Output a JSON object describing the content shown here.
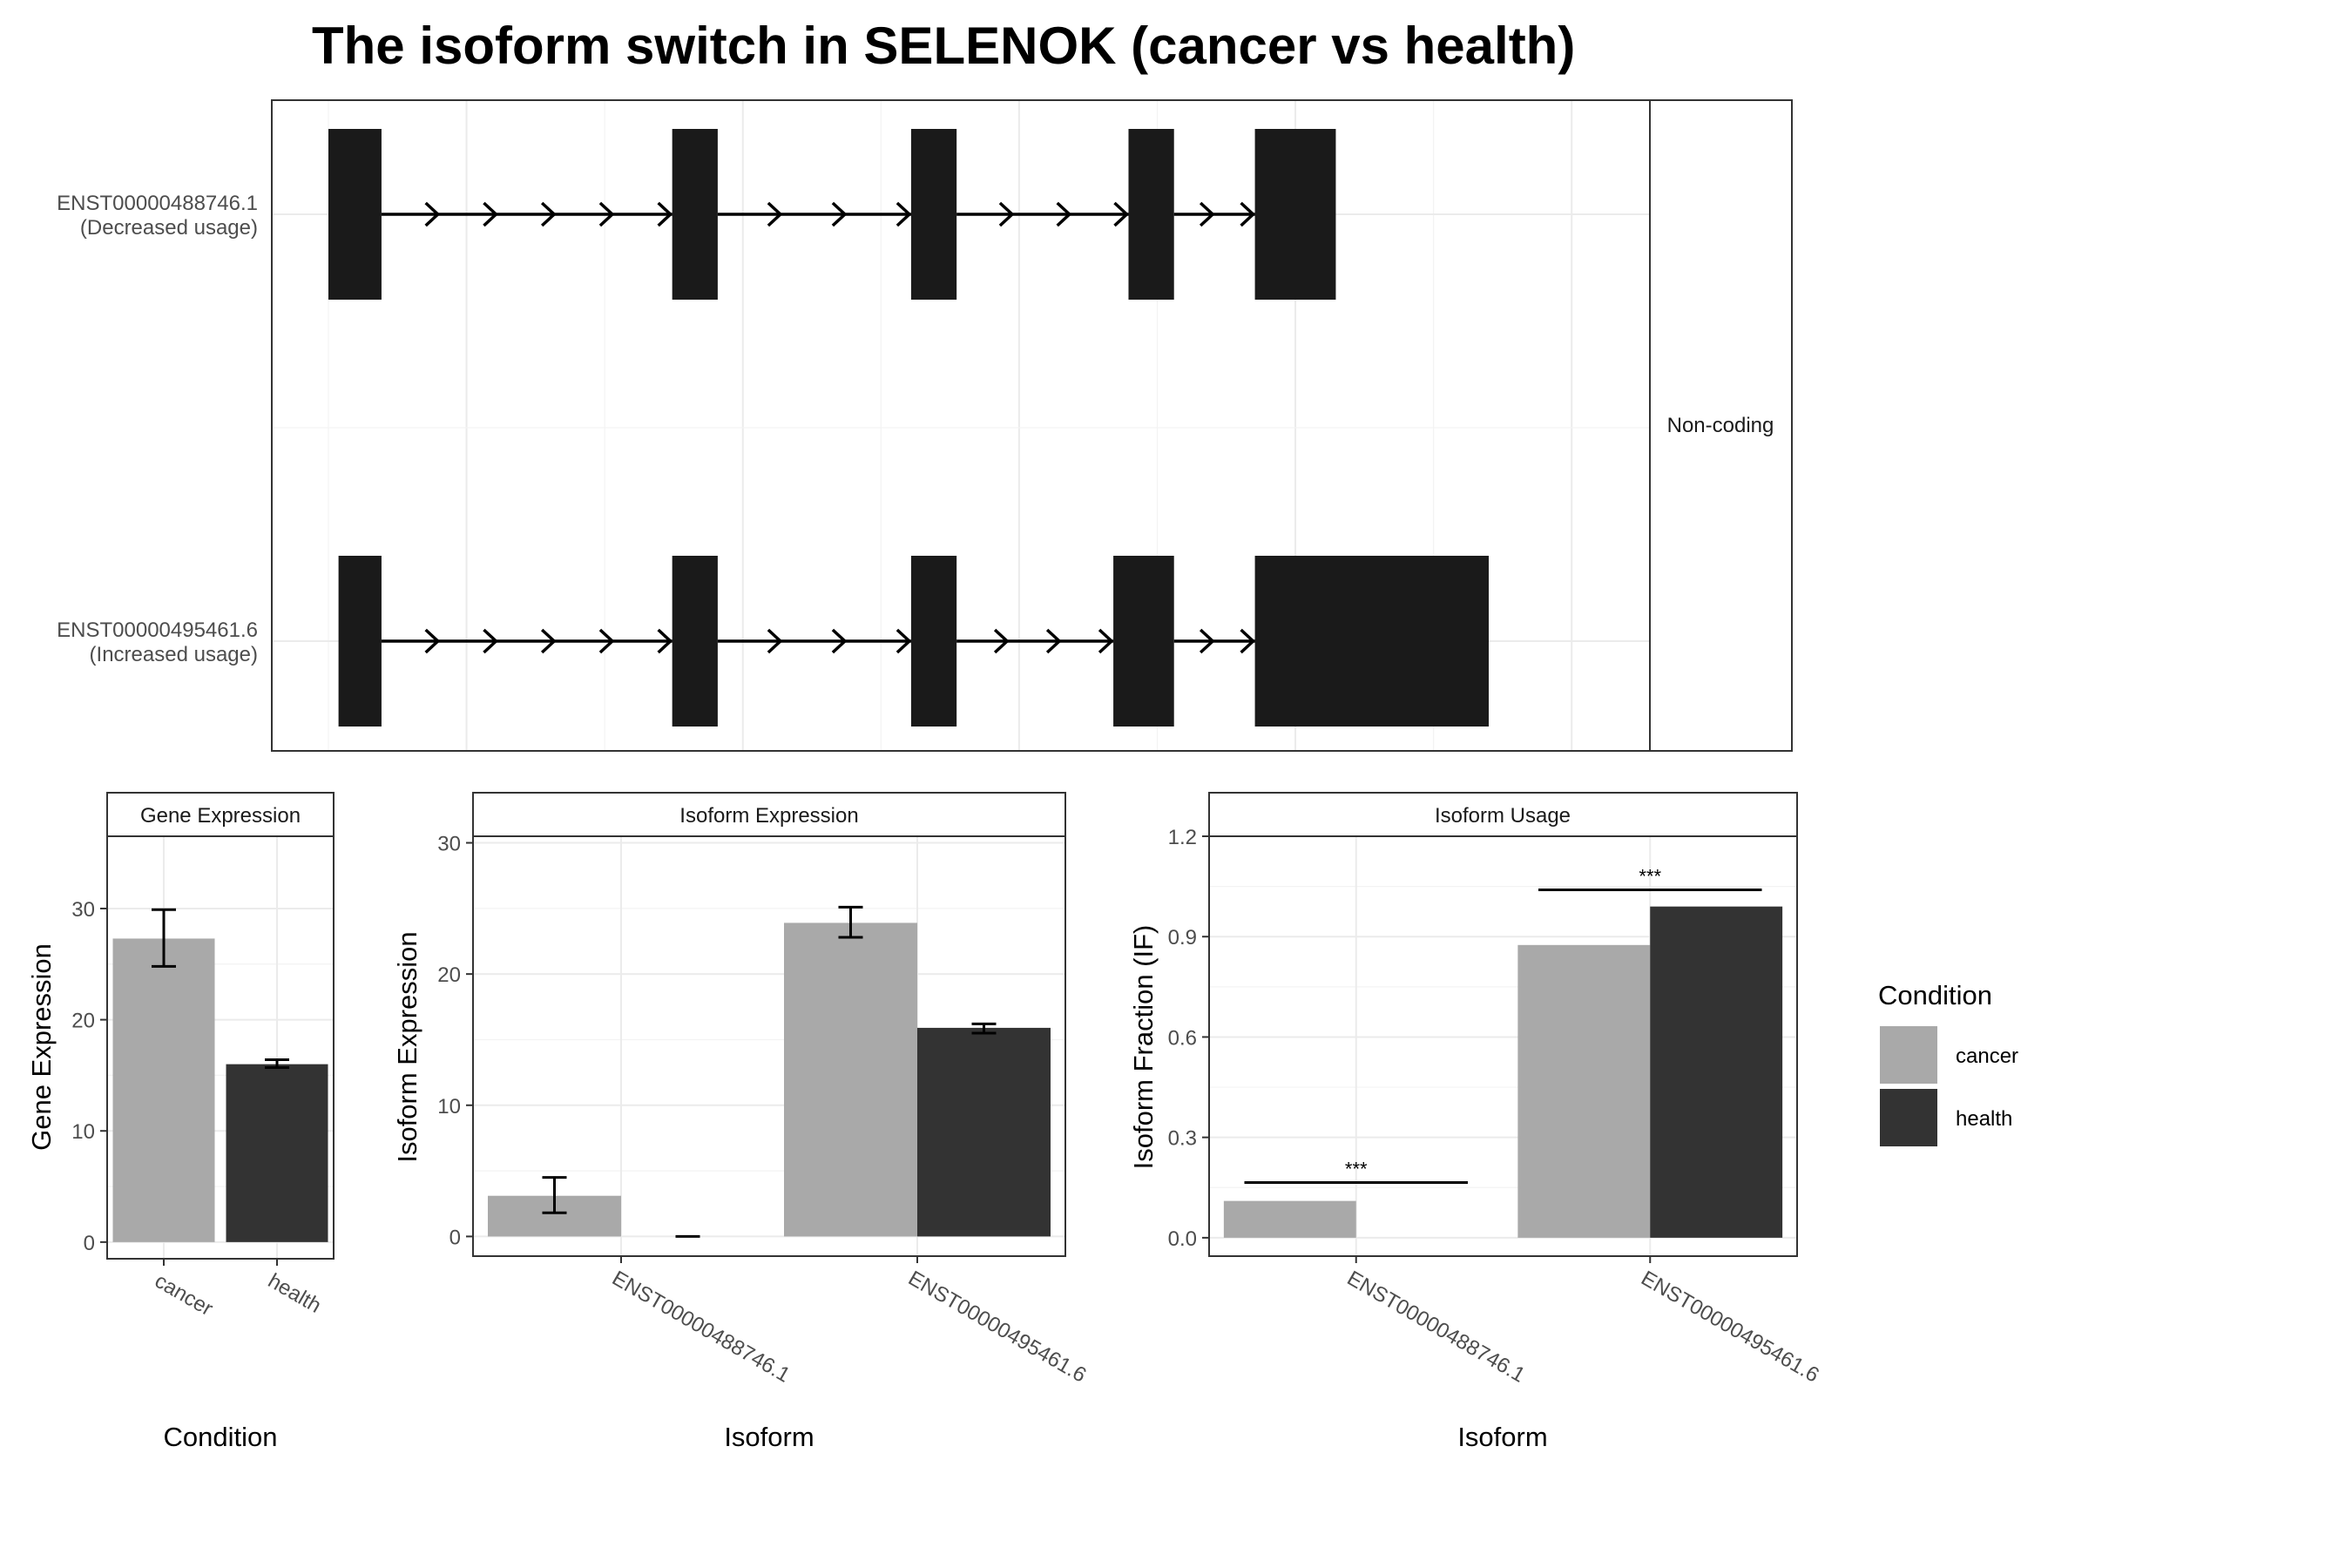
{
  "title": "The isoform switch in SELENOK (cancer vs health)",
  "colors": {
    "cancer": "#a9a9a9",
    "health": "#333333",
    "exon": "#1a1a1a"
  },
  "chart_data": [
    {
      "type": "gene-structure",
      "panel_label": "Non-coding",
      "transcripts": [
        {
          "name": "ENST00000488746.1",
          "usage_label": "(Decreased usage)",
          "exons": [
            [
              0.0,
              0.042
            ],
            [
              0.272,
              0.308
            ],
            [
              0.461,
              0.497
            ],
            [
              0.633,
              0.669
            ],
            [
              0.733,
              0.797
            ]
          ]
        },
        {
          "name": "ENST00000495461.6",
          "usage_label": "(Increased usage)",
          "exons": [
            [
              0.008,
              0.042
            ],
            [
              0.272,
              0.308
            ],
            [
              0.461,
              0.497
            ],
            [
              0.621,
              0.669
            ],
            [
              0.733,
              0.918
            ]
          ]
        }
      ]
    },
    {
      "type": "bar",
      "strip": "Gene Expression",
      "xlabel": "Condition",
      "ylabel": "Gene Expression",
      "categories": [
        "cancer",
        "health"
      ],
      "values": [
        27.3,
        16.0
      ],
      "errors": [
        [
          24.8,
          29.9
        ],
        [
          15.7,
          16.4
        ]
      ],
      "ylim": [
        -1.5,
        36.5
      ],
      "yticks": [
        "0",
        "10",
        "20",
        "30"
      ]
    },
    {
      "type": "bar",
      "strip": "Isoform Expression",
      "xlabel": "Isoform",
      "ylabel": "Isoform Expression",
      "categories": [
        "ENST00000488746.1",
        "ENST00000495461.6"
      ],
      "series": [
        {
          "name": "cancer",
          "values": [
            3.1,
            23.9
          ],
          "errors": [
            [
              1.8,
              4.5
            ],
            [
              22.8,
              25.1
            ]
          ]
        },
        {
          "name": "health",
          "values": [
            0.0,
            15.9
          ],
          "errors": [
            [
              0.0,
              0.0
            ],
            [
              15.5,
              16.2
            ]
          ]
        }
      ],
      "ylim": [
        -1.5,
        30.5
      ],
      "yticks": [
        "0",
        "10",
        "20",
        "30"
      ]
    },
    {
      "type": "bar",
      "strip": "Isoform Usage",
      "xlabel": "Isoform",
      "ylabel": "Isoform Fraction (IF)",
      "categories": [
        "ENST00000488746.1",
        "ENST00000495461.6"
      ],
      "series": [
        {
          "name": "cancer",
          "values": [
            0.11,
            0.875
          ]
        },
        {
          "name": "health",
          "values": [
            0.0,
            0.99
          ]
        }
      ],
      "significance": [
        {
          "label": "***",
          "y": 0.165
        },
        {
          "label": "***",
          "y": 1.04
        }
      ],
      "ylim": [
        -0.055,
        1.2
      ],
      "yticks": [
        "0.0",
        "0.3",
        "0.6",
        "0.9",
        "1.2"
      ]
    }
  ],
  "legend": {
    "title": "Condition",
    "items": [
      {
        "label": "cancer",
        "color": "#a9a9a9"
      },
      {
        "label": "health",
        "color": "#333333"
      }
    ]
  }
}
